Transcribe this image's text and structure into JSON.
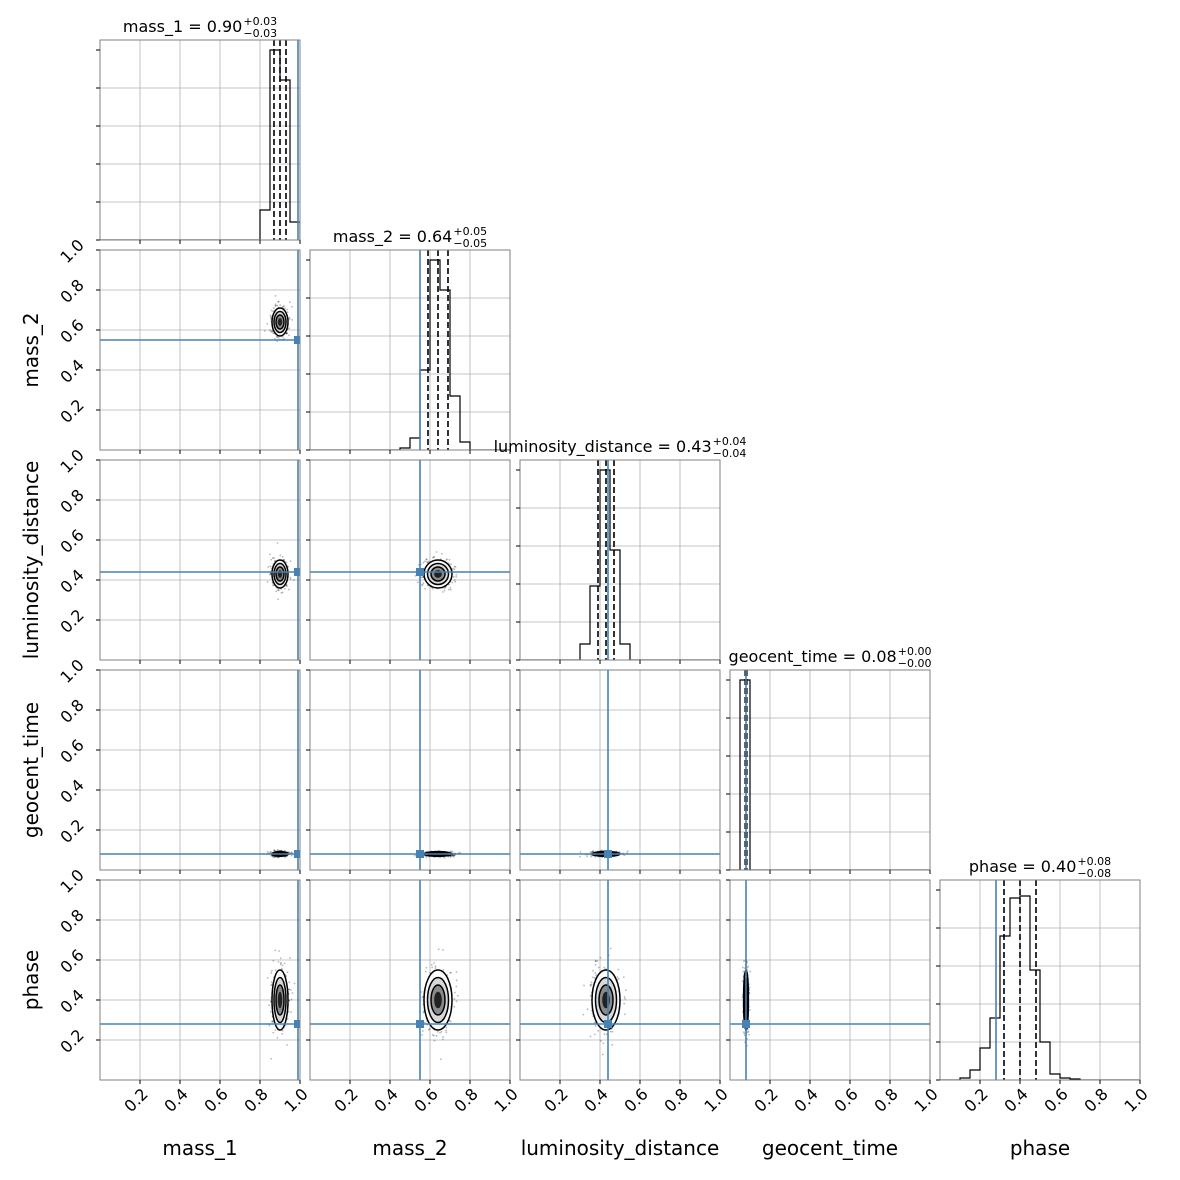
{
  "chart_data": {
    "type": "corner",
    "parameters": [
      "mass_1",
      "mass_2",
      "luminosity_distance",
      "geocent_time",
      "phase"
    ],
    "axis_range": [
      0,
      1.0
    ],
    "tick_labels": [
      "0.2",
      "0.4",
      "0.6",
      "0.8",
      "1.0"
    ],
    "tick_values": [
      0.2,
      0.4,
      0.6,
      0.8,
      1.0
    ],
    "grid": true,
    "colors": {
      "injection": "#4682b4",
      "histogram": "#000000",
      "grid": "#b0b0b0",
      "frame": "#808080"
    },
    "titles": [
      {
        "param": "mass_1",
        "label": "mass_1 = 0.90",
        "plus": "+0.03",
        "minus": "−0.03"
      },
      {
        "param": "mass_2",
        "label": "mass_2 = 0.64",
        "plus": "+0.05",
        "minus": "−0.05"
      },
      {
        "param": "luminosity_distance",
        "label": "luminosity_distance = 0.43",
        "plus": "+0.04",
        "minus": "−0.04"
      },
      {
        "param": "geocent_time",
        "label": "geocent_time = 0.08",
        "plus": "+0.00",
        "minus": "−0.00"
      },
      {
        "param": "phase",
        "label": "phase = 0.40",
        "plus": "+0.08",
        "minus": "−0.08"
      }
    ],
    "estimates": [
      {
        "param": "mass_1",
        "median": 0.9,
        "plus": 0.03,
        "minus": 0.03,
        "std": 0.02
      },
      {
        "param": "mass_2",
        "median": 0.64,
        "plus": 0.05,
        "minus": 0.05,
        "std": 0.035
      },
      {
        "param": "luminosity_distance",
        "median": 0.43,
        "plus": 0.04,
        "minus": 0.04,
        "std": 0.035
      },
      {
        "param": "geocent_time",
        "median": 0.08,
        "plus": 0.004,
        "minus": 0.004,
        "std": 0.006
      },
      {
        "param": "phase",
        "median": 0.4,
        "plus": 0.08,
        "minus": 0.08,
        "std": 0.075
      }
    ],
    "injection": [
      0.99,
      0.55,
      0.44,
      0.08,
      0.28
    ],
    "histograms": [
      {
        "param": "mass_1",
        "bin_edges": [
          0.8,
          0.85,
          0.9,
          0.95,
          1.0
        ],
        "counts": [
          0.15,
          0.95,
          0.8,
          0.09
        ]
      },
      {
        "param": "mass_2",
        "bin_edges": [
          0.45,
          0.5,
          0.55,
          0.6,
          0.65,
          0.7,
          0.75,
          0.8
        ],
        "counts": [
          0.01,
          0.06,
          0.4,
          0.95,
          0.8,
          0.27,
          0.04
        ]
      },
      {
        "param": "luminosity_distance",
        "bin_edges": [
          0.3,
          0.35,
          0.4,
          0.45,
          0.5,
          0.55
        ],
        "counts": [
          0.08,
          0.37,
          0.95,
          0.55,
          0.08
        ]
      },
      {
        "param": "geocent_time",
        "bin_edges": [
          0.05,
          0.1
        ],
        "counts": [
          0.95
        ]
      },
      {
        "param": "phase",
        "bin_edges": [
          0.1,
          0.15,
          0.2,
          0.25,
          0.3,
          0.35,
          0.4,
          0.45,
          0.5,
          0.55,
          0.6,
          0.65,
          0.7
        ],
        "counts": [
          0.01,
          0.05,
          0.16,
          0.31,
          0.72,
          0.91,
          0.92,
          0.55,
          0.19,
          0.03,
          0.01,
          0.005
        ]
      }
    ]
  }
}
